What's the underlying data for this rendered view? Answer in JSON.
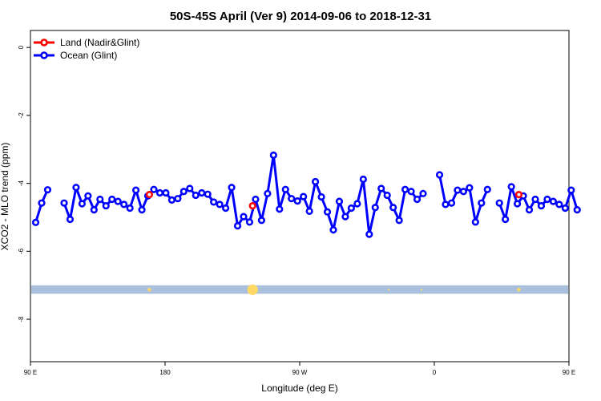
{
  "chart_data": {
    "type": "line",
    "title": "50S-45S April (Ver 9)   2014-09-06 to 2018-12-31",
    "xlabel": "Longitude (deg E)",
    "ylabel": "XCO2 - MLO trend (ppm)",
    "xlim": [
      90,
      450
    ],
    "ylim": [
      -9.25,
      0.5
    ],
    "x_ticks": [
      {
        "value": 90,
        "label": "90 E"
      },
      {
        "value": 180,
        "label": "180"
      },
      {
        "value": 270,
        "label": "90 W"
      },
      {
        "value": 360,
        "label": "0"
      },
      {
        "value": 450,
        "label": "90 E"
      },
      {
        "value": 540,
        "label": "180"
      }
    ],
    "y_ticks": [
      {
        "value": 0,
        "label": "0"
      },
      {
        "value": -2,
        "label": "-2"
      },
      {
        "value": -4,
        "label": "-4"
      },
      {
        "value": -6,
        "label": "-6"
      },
      {
        "value": -8,
        "label": "-8"
      }
    ],
    "legend_position": "top-left",
    "land_band_color": "#a9bfdc",
    "land_marker_color": "#ffd966",
    "series": [
      {
        "name": "Land (Nadir&Glint)",
        "color": "#ff0000",
        "segments": [
          [
            [
              169.5,
              -4.33
            ]
          ],
          [
            [
              238.5,
              -4.66
            ]
          ],
          [
            [
              416.5,
              -4.33
            ]
          ]
        ]
      },
      {
        "name": "Ocean (Glint)",
        "color": "#0000ff",
        "segments": [
          [
            [
              93.5,
              -5.15
            ],
            [
              97.5,
              -4.58
            ],
            [
              101.5,
              -4.19
            ]
          ],
          [
            [
              112.5,
              -4.58
            ],
            [
              116.5,
              -5.06
            ],
            [
              120.5,
              -4.12
            ],
            [
              124.5,
              -4.6
            ],
            [
              128.5,
              -4.37
            ],
            [
              132.5,
              -4.78
            ],
            [
              136.5,
              -4.47
            ],
            [
              140.5,
              -4.66
            ],
            [
              144.5,
              -4.47
            ],
            [
              148.5,
              -4.53
            ],
            [
              152.5,
              -4.62
            ],
            [
              156.5,
              -4.73
            ],
            [
              160.5,
              -4.2
            ],
            [
              164.5,
              -4.78
            ],
            [
              168.5,
              -4.37
            ],
            [
              172.5,
              -4.18
            ],
            [
              176.5,
              -4.28
            ],
            [
              180.5,
              -4.28
            ],
            [
              184.5,
              -4.49
            ],
            [
              188.5,
              -4.45
            ],
            [
              192.5,
              -4.24
            ],
            [
              196.5,
              -4.15
            ],
            [
              200.5,
              -4.35
            ],
            [
              204.5,
              -4.28
            ],
            [
              208.5,
              -4.32
            ],
            [
              212.5,
              -4.55
            ],
            [
              216.5,
              -4.62
            ],
            [
              220.5,
              -4.73
            ],
            [
              224.5,
              -4.12
            ],
            [
              228.5,
              -5.25
            ],
            [
              232.5,
              -4.98
            ],
            [
              236.5,
              -5.14
            ],
            [
              240.5,
              -4.47
            ],
            [
              244.5,
              -5.09
            ],
            [
              248.5,
              -4.3
            ],
            [
              252.5,
              -3.17
            ],
            [
              256.5,
              -4.76
            ],
            [
              260.5,
              -4.18
            ],
            [
              264.5,
              -4.45
            ],
            [
              268.5,
              -4.52
            ],
            [
              272.5,
              -4.39
            ],
            [
              276.5,
              -4.82
            ],
            [
              280.5,
              -3.95
            ],
            [
              284.5,
              -4.4
            ],
            [
              288.5,
              -4.84
            ],
            [
              292.5,
              -5.37
            ],
            [
              296.5,
              -4.53
            ],
            [
              300.5,
              -4.98
            ],
            [
              304.5,
              -4.73
            ],
            [
              308.5,
              -4.6
            ],
            [
              312.5,
              -3.88
            ],
            [
              316.5,
              -5.5
            ],
            [
              320.5,
              -4.71
            ],
            [
              324.5,
              -4.15
            ],
            [
              328.5,
              -4.35
            ],
            [
              332.5,
              -4.71
            ],
            [
              336.5,
              -5.09
            ],
            [
              340.5,
              -4.18
            ],
            [
              344.5,
              -4.24
            ],
            [
              348.5,
              -4.47
            ],
            [
              352.5,
              -4.3
            ]
          ],
          [
            [
              363.5,
              -3.75
            ],
            [
              367.5,
              -4.62
            ],
            [
              371.5,
              -4.58
            ],
            [
              375.5,
              -4.2
            ],
            [
              379.5,
              -4.24
            ],
            [
              383.5,
              -4.13
            ],
            [
              387.5,
              -5.14
            ],
            [
              391.5,
              -4.58
            ],
            [
              395.5,
              -4.18
            ]
          ],
          [
            [
              403.5,
              -4.58
            ],
            [
              407.5,
              -5.06
            ],
            [
              411.5,
              -4.1
            ],
            [
              415.5,
              -4.6
            ],
            [
              419.5,
              -4.37
            ],
            [
              423.5,
              -4.78
            ],
            [
              427.5,
              -4.47
            ],
            [
              431.5,
              -4.66
            ],
            [
              435.5,
              -4.47
            ],
            [
              439.5,
              -4.53
            ],
            [
              443.5,
              -4.62
            ],
            [
              447.5,
              -4.73
            ],
            [
              451.5,
              -4.2
            ],
            [
              455.5,
              -4.78
            ]
          ]
        ]
      }
    ],
    "land_markers": [
      {
        "x": 169.5,
        "size": 1
      },
      {
        "x": 238.5,
        "size": 3
      },
      {
        "x": 329.5,
        "size": 0.5
      },
      {
        "x": 351.5,
        "size": 0.5
      },
      {
        "x": 416.5,
        "size": 1
      }
    ]
  }
}
